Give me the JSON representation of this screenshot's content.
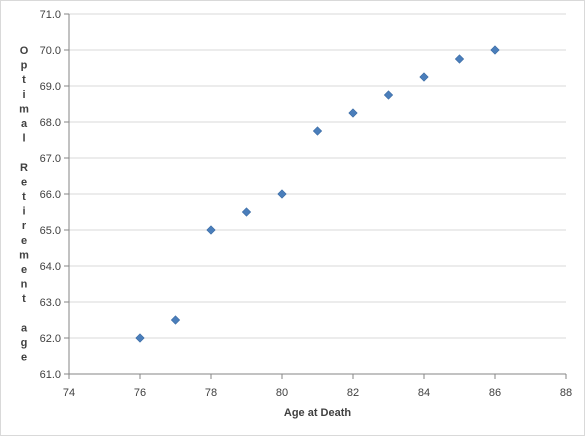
{
  "chart_data": {
    "type": "scatter",
    "title": "",
    "xlabel": "Age at Death",
    "ylabel": "Optimal Retirement age",
    "xlim": [
      74,
      88
    ],
    "ylim": [
      61.0,
      71.0
    ],
    "x_ticks": [
      "74",
      "76",
      "78",
      "80",
      "82",
      "84",
      "86",
      "88"
    ],
    "y_ticks": [
      "61.0",
      "62.0",
      "63.0",
      "64.0",
      "65.0",
      "66.0",
      "67.0",
      "68.0",
      "69.0",
      "70.0",
      "71.0"
    ],
    "grid": "horizontal",
    "legend": "none",
    "marker": "diamond",
    "color": "#4a7ebb",
    "series": [
      {
        "x": [
          76,
          77,
          78,
          79,
          80,
          81,
          82,
          83,
          84,
          85,
          86
        ],
        "y": [
          62.0,
          62.5,
          65.0,
          65.5,
          66.0,
          67.75,
          68.25,
          68.75,
          69.25,
          69.75,
          70.0
        ]
      }
    ]
  }
}
